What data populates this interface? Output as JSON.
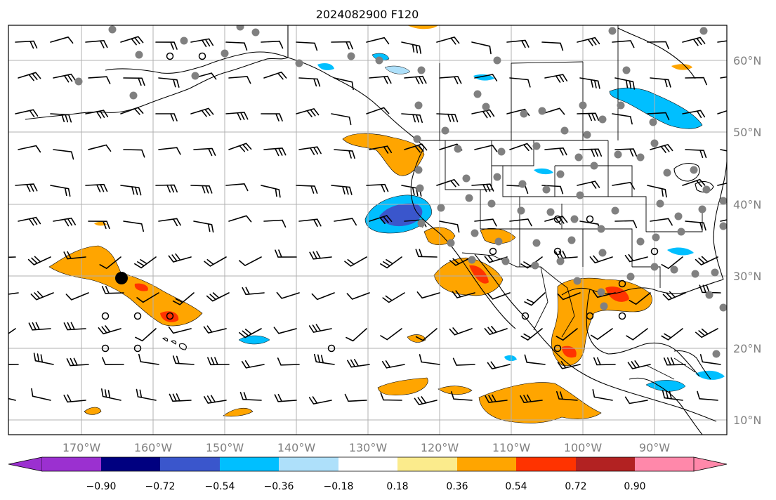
{
  "title": "2024082900 F120",
  "map": {
    "lon_labels": [
      "170°W",
      "160°W",
      "150°W",
      "140°W",
      "130°W",
      "120°W",
      "110°W",
      "100°W",
      "90°W"
    ],
    "lat_labels": [
      "60°N",
      "50°N",
      "40°N",
      "30°N",
      "20°N",
      "10°N"
    ],
    "grid": true,
    "projection": "PlateCarree",
    "lon_range": [
      -180,
      -79.8
    ],
    "lat_range": [
      8,
      64.2
    ]
  },
  "colorbar": {
    "ticks": [
      "−0.90",
      "−0.72",
      "−0.54",
      "−0.36",
      "−0.18",
      "0.18",
      "0.36",
      "0.54",
      "0.72",
      "0.90"
    ],
    "colors": [
      "#9b30d0",
      "#000080",
      "#3a56cc",
      "#00bfff",
      "#aee0fa",
      "#ffffff",
      "#fbeb8c",
      "#ffa500",
      "#ff3300",
      "#b22222",
      "#ff88aa"
    ],
    "extend": "both"
  },
  "colors": {
    "station": "#808080",
    "grid": "#b0b0b0",
    "label": "#808080"
  }
}
